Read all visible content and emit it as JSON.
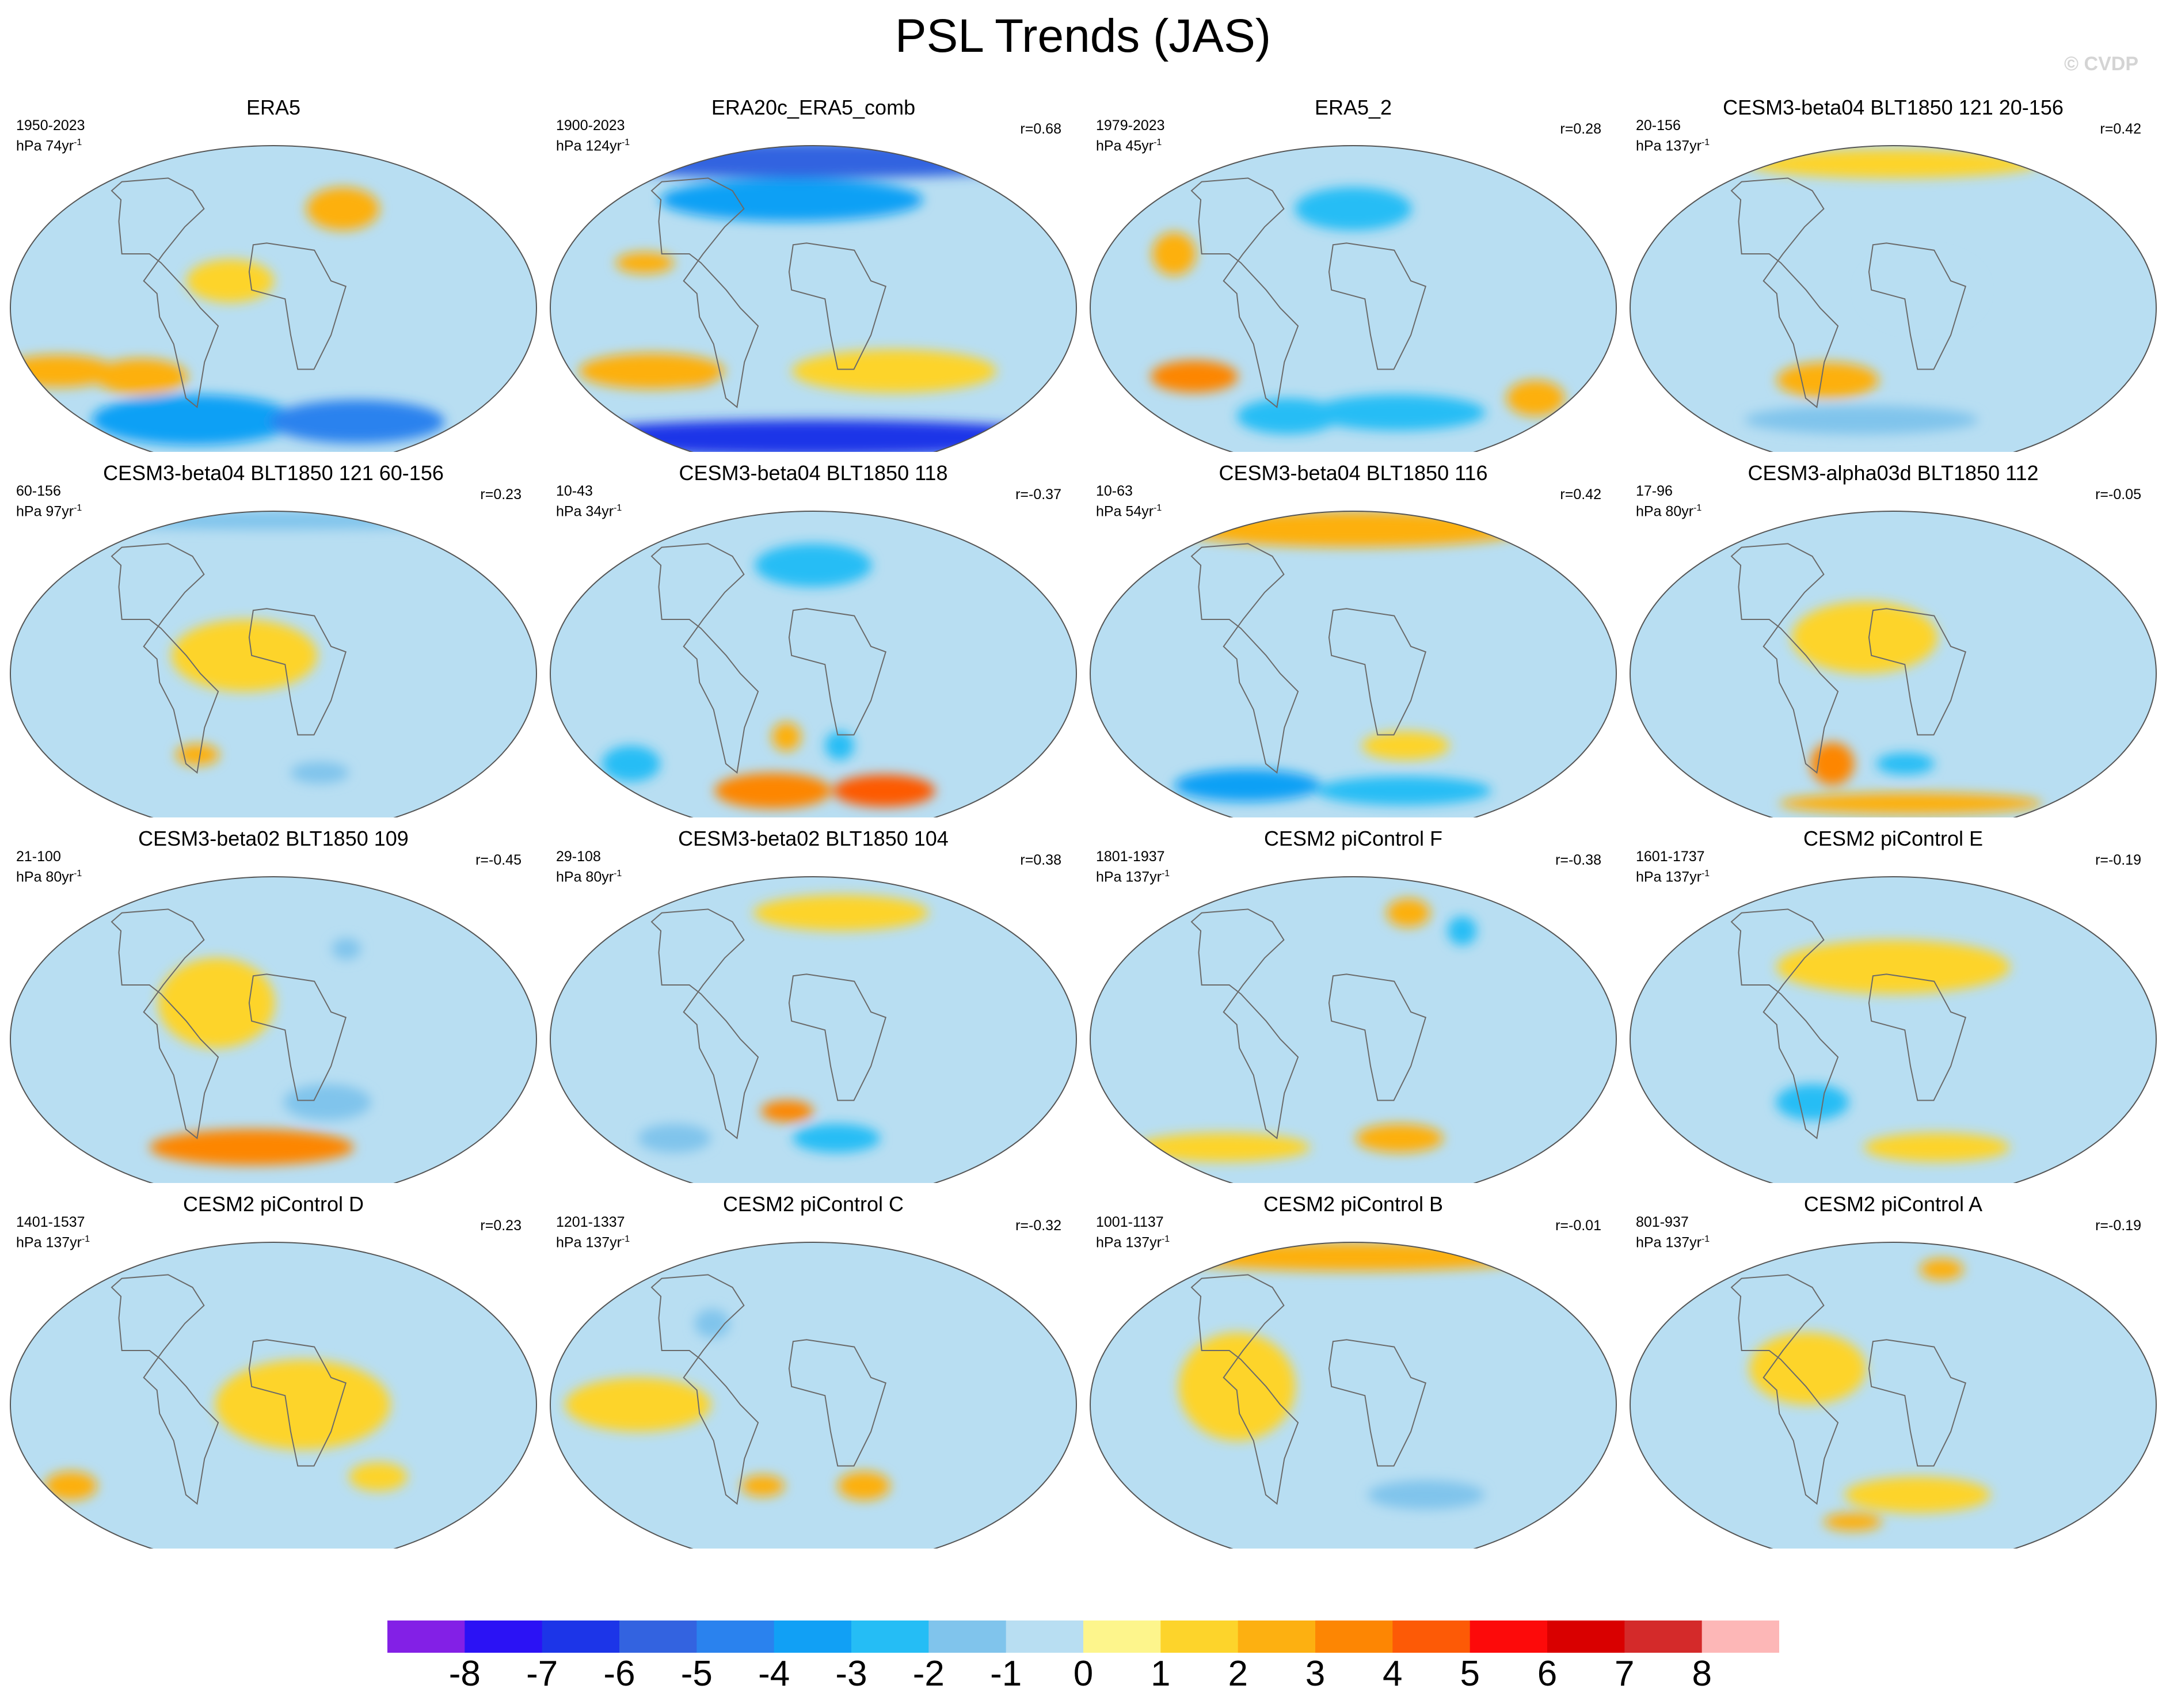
{
  "chart_data": {
    "type": "heatmap",
    "title": "PSL Trends (JAS)",
    "watermark": "© CVDP",
    "colorbar": {
      "levels": [
        -8,
        -7,
        -6,
        -5,
        -4,
        -3,
        -2,
        -1,
        0,
        1,
        2,
        3,
        4,
        5,
        6,
        7,
        8
      ],
      "labels": [
        "-8",
        "-7",
        "-6",
        "-5",
        "-4",
        "-3",
        "-2",
        "-1",
        "0",
        "1",
        "2",
        "3",
        "4",
        "5",
        "6",
        "7",
        "8"
      ],
      "colors": [
        "#8320e6",
        "#2b12f5",
        "#1c35e8",
        "#3363e0",
        "#2a82ee",
        "#11a0f5",
        "#25bdf5",
        "#80c4ec",
        "#b8def2",
        "#fdf58c",
        "#fdd42b",
        "#fdb011",
        "#fd8603",
        "#fd5a06",
        "#fd0a0a",
        "#d90000",
        "#d42a2a",
        "#fdb7b7"
      ]
    },
    "panels": [
      {
        "title": "ERA5",
        "period": "1950-2023",
        "units": "hPa 74yr",
        "units_sup": "-1",
        "r": "",
        "features": [
          {
            "lon": -75,
            "lat": -62,
            "val": -4,
            "rx": 70,
            "ry": 14
          },
          {
            "lon": 80,
            "lat": -63,
            "val": -5,
            "rx": 60,
            "ry": 12
          },
          {
            "lon": -160,
            "lat": -35,
            "val": 2,
            "rx": 40,
            "ry": 9
          },
          {
            "lon": -100,
            "lat": -38,
            "val": 2,
            "rx": 32,
            "ry": 10
          },
          {
            "lon": 60,
            "lat": 55,
            "val": 2,
            "rx": 25,
            "ry": 12
          },
          {
            "lon": -30,
            "lat": 15,
            "val": 1,
            "rx": 30,
            "ry": 12
          }
        ]
      },
      {
        "title": "ERA20c_ERA5_comb",
        "period": "1900-2023",
        "units": "hPa 124yr",
        "units_sup": "-1",
        "r": "r=0.68",
        "features": [
          {
            "lon": 0,
            "lat": 82,
            "val": -6,
            "rx": 180,
            "ry": 10
          },
          {
            "lon": 0,
            "lat": -72,
            "val": -7,
            "rx": 180,
            "ry": 10
          },
          {
            "lon": -20,
            "lat": 60,
            "val": -4,
            "rx": 90,
            "ry": 12
          },
          {
            "lon": -100,
            "lat": -38,
            "val": 4,
            "rx": 25,
            "ry": 6
          },
          {
            "lon": -120,
            "lat": -35,
            "val": 2,
            "rx": 50,
            "ry": 10
          },
          {
            "lon": -120,
            "lat": 25,
            "val": 2,
            "rx": 20,
            "ry": 6
          },
          {
            "lon": 60,
            "lat": -35,
            "val": 1,
            "rx": 70,
            "ry": 12
          }
        ]
      },
      {
        "title": "ERA5_2",
        "period": "1979-2023",
        "units": "hPa 45yr",
        "units_sup": "-1",
        "r": "r=0.28",
        "features": [
          {
            "lon": -120,
            "lat": -38,
            "val": 3,
            "rx": 30,
            "ry": 9
          },
          {
            "lon": -130,
            "lat": 30,
            "val": 2,
            "rx": 15,
            "ry": 12
          },
          {
            "lon": 0,
            "lat": 55,
            "val": -3,
            "rx": 40,
            "ry": 12
          },
          {
            "lon": 40,
            "lat": -58,
            "val": -3,
            "rx": 60,
            "ry": 10
          },
          {
            "lon": -60,
            "lat": -60,
            "val": -3,
            "rx": 35,
            "ry": 10
          },
          {
            "lon": 150,
            "lat": -50,
            "val": 2,
            "rx": 20,
            "ry": 10
          }
        ]
      },
      {
        "title": "CESM3-beta04 BLT1850 121 20-156",
        "period": "20-156",
        "units": "hPa 137yr",
        "units_sup": "-1",
        "r": "r=0.42",
        "features": [
          {
            "lon": -50,
            "lat": -40,
            "val": 2,
            "rx": 35,
            "ry": 10
          },
          {
            "lon": 0,
            "lat": 80,
            "val": 1,
            "rx": 100,
            "ry": 8
          },
          {
            "lon": -30,
            "lat": -62,
            "val": -2,
            "rx": 80,
            "ry": 8
          },
          {
            "lon": 20,
            "lat": 10,
            "val": -1,
            "rx": 40,
            "ry": 20
          }
        ]
      },
      {
        "title": "CESM3-beta04 BLT1850 121 60-156",
        "period": "60-156",
        "units": "hPa 97yr",
        "units_sup": "-1",
        "r": "r=0.23",
        "features": [
          {
            "lon": 0,
            "lat": 85,
            "val": -2,
            "rx": 180,
            "ry": 5
          },
          {
            "lon": -60,
            "lat": -45,
            "val": 2,
            "rx": 15,
            "ry": 6
          },
          {
            "lon": 40,
            "lat": -55,
            "val": -2,
            "rx": 20,
            "ry": 6
          },
          {
            "lon": -20,
            "lat": 10,
            "val": 1,
            "rx": 50,
            "ry": 20
          }
        ]
      },
      {
        "title": "CESM3-beta04 BLT1850 118",
        "period": "10-43",
        "units": "hPa 34yr",
        "units_sup": "-1",
        "r": "r=-0.37",
        "features": [
          {
            "lon": -40,
            "lat": -65,
            "val": 3,
            "rx": 40,
            "ry": 10
          },
          {
            "lon": 70,
            "lat": -65,
            "val": 4,
            "rx": 35,
            "ry": 9
          },
          {
            "lon": 20,
            "lat": -40,
            "val": -3,
            "rx": 10,
            "ry": 8
          },
          {
            "lon": -20,
            "lat": -35,
            "val": 2,
            "rx": 10,
            "ry": 8
          },
          {
            "lon": 0,
            "lat": 60,
            "val": -3,
            "rx": 40,
            "ry": 12
          },
          {
            "lon": -150,
            "lat": -50,
            "val": -3,
            "rx": 20,
            "ry": 10
          }
        ]
      },
      {
        "title": "CESM3-beta04 BLT1850 116",
        "period": "10-63",
        "units": "hPa 54yr",
        "units_sup": "-1",
        "r": "r=0.42",
        "features": [
          {
            "lon": 0,
            "lat": 80,
            "val": 2,
            "rx": 120,
            "ry": 10
          },
          {
            "lon": -100,
            "lat": -62,
            "val": -4,
            "rx": 50,
            "ry": 9
          },
          {
            "lon": 50,
            "lat": -65,
            "val": -3,
            "rx": 60,
            "ry": 8
          },
          {
            "lon": 40,
            "lat": -40,
            "val": 1,
            "rx": 30,
            "ry": 8
          }
        ]
      },
      {
        "title": "CESM3-alpha03d BLT1850 112",
        "period": "17-96",
        "units": "hPa 80yr",
        "units_sup": "-1",
        "r": "r=-0.05",
        "features": [
          {
            "lon": -50,
            "lat": -50,
            "val": 3,
            "rx": 15,
            "ry": 12
          },
          {
            "lon": 20,
            "lat": -72,
            "val": 2,
            "rx": 90,
            "ry": 6
          },
          {
            "lon": 10,
            "lat": -50,
            "val": -3,
            "rx": 20,
            "ry": 6
          },
          {
            "lon": -20,
            "lat": 20,
            "val": 1,
            "rx": 50,
            "ry": 20
          }
        ]
      },
      {
        "title": "CESM3-beta02 BLT1850 109",
        "period": "21-100",
        "units": "hPa 80yr",
        "units_sup": "-1",
        "r": "r=-0.45",
        "features": [
          {
            "lon": -20,
            "lat": -60,
            "val": 3,
            "rx": 70,
            "ry": 10
          },
          {
            "lon": 40,
            "lat": -35,
            "val": -2,
            "rx": 30,
            "ry": 10
          },
          {
            "lon": -40,
            "lat": 20,
            "val": 1,
            "rx": 40,
            "ry": 25
          },
          {
            "lon": 60,
            "lat": 50,
            "val": -2,
            "rx": 10,
            "ry": 6
          }
        ]
      },
      {
        "title": "CESM3-beta02 BLT1850 104",
        "period": "29-108",
        "units": "hPa 80yr",
        "units_sup": "-1",
        "r": "r=0.38",
        "features": [
          {
            "lon": -20,
            "lat": -40,
            "val": 3,
            "rx": 18,
            "ry": 6
          },
          {
            "lon": 20,
            "lat": -55,
            "val": -3,
            "rx": 30,
            "ry": 8
          },
          {
            "lon": -120,
            "lat": -55,
            "val": -2,
            "rx": 25,
            "ry": 8
          },
          {
            "lon": 30,
            "lat": 70,
            "val": 1,
            "rx": 60,
            "ry": 10
          }
        ]
      },
      {
        "title": "CESM2 piControl F",
        "period": "1801-1937",
        "units": "hPa 137yr",
        "units_sup": "-1",
        "r": "r=-0.38",
        "features": [
          {
            "lon": 40,
            "lat": -55,
            "val": 2,
            "rx": 30,
            "ry": 8
          },
          {
            "lon": -120,
            "lat": -60,
            "val": 1,
            "rx": 60,
            "ry": 8
          },
          {
            "lon": 60,
            "lat": 70,
            "val": 2,
            "rx": 15,
            "ry": 8
          },
          {
            "lon": 100,
            "lat": 60,
            "val": -3,
            "rx": 10,
            "ry": 8
          }
        ]
      },
      {
        "title": "CESM2 piControl E",
        "period": "1601-1737",
        "units": "hPa 137yr",
        "units_sup": "-1",
        "r": "r=-0.19",
        "features": [
          {
            "lon": -60,
            "lat": -35,
            "val": -3,
            "rx": 25,
            "ry": 10
          },
          {
            "lon": 40,
            "lat": -60,
            "val": 1,
            "rx": 50,
            "ry": 8
          },
          {
            "lon": 0,
            "lat": 40,
            "val": 1,
            "rx": 80,
            "ry": 15
          }
        ]
      },
      {
        "title": "CESM2 piControl D",
        "period": "1401-1537",
        "units": "hPa 137yr",
        "units_sup": "-1",
        "r": "r=0.23",
        "features": [
          {
            "lon": -160,
            "lat": -45,
            "val": 2,
            "rx": 18,
            "ry": 8
          },
          {
            "lon": 20,
            "lat": 0,
            "val": 1,
            "rx": 60,
            "ry": 25
          },
          {
            "lon": 80,
            "lat": -40,
            "val": 1,
            "rx": 20,
            "ry": 8
          }
        ]
      },
      {
        "title": "CESM2 piControl C",
        "period": "1201-1337",
        "units": "hPa 137yr",
        "units_sup": "-1",
        "r": "r=-0.32",
        "features": [
          {
            "lon": 40,
            "lat": -45,
            "val": 2,
            "rx": 18,
            "ry": 8
          },
          {
            "lon": -40,
            "lat": -45,
            "val": 2,
            "rx": 15,
            "ry": 6
          },
          {
            "lon": -80,
            "lat": 45,
            "val": -2,
            "rx": 12,
            "ry": 8
          },
          {
            "lon": -120,
            "lat": 0,
            "val": 1,
            "rx": 50,
            "ry": 15
          }
        ]
      },
      {
        "title": "CESM2 piControl B",
        "period": "1001-1137",
        "units": "hPa 137yr",
        "units_sup": "-1",
        "r": "r=-0.01",
        "features": [
          {
            "lon": 0,
            "lat": 82,
            "val": 2,
            "rx": 130,
            "ry": 8
          },
          {
            "lon": 60,
            "lat": -50,
            "val": -2,
            "rx": 40,
            "ry": 8
          },
          {
            "lon": -80,
            "lat": 10,
            "val": 1,
            "rx": 40,
            "ry": 30
          }
        ]
      },
      {
        "title": "CESM2 piControl A",
        "period": "801-937",
        "units": "hPa 137yr",
        "units_sup": "-1",
        "r": "r=-0.19",
        "features": [
          {
            "lon": 20,
            "lat": -50,
            "val": 1,
            "rx": 50,
            "ry": 10
          },
          {
            "lon": -40,
            "lat": -65,
            "val": 2,
            "rx": 20,
            "ry": 5
          },
          {
            "lon": 60,
            "lat": 75,
            "val": 2,
            "rx": 15,
            "ry": 6
          },
          {
            "lon": -60,
            "lat": 20,
            "val": 1,
            "rx": 40,
            "ry": 20
          }
        ]
      }
    ]
  }
}
